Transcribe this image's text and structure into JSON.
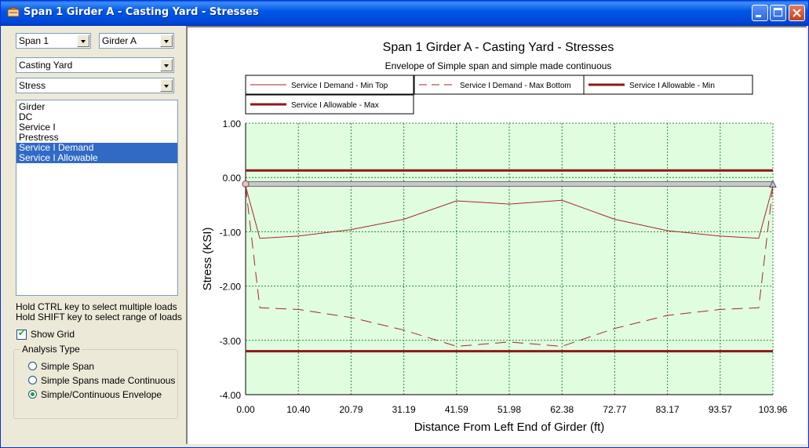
{
  "window": {
    "title": "Span 1 Girder A - Casting Yard - Stresses",
    "buttons": [
      "minimize",
      "maximize",
      "close"
    ]
  },
  "controls": {
    "span": "Span 1",
    "girder": "Girder A",
    "stage": "Casting Yard",
    "action": "Stress",
    "loads": [
      {
        "label": "Girder",
        "selected": false
      },
      {
        "label": "DC",
        "selected": false
      },
      {
        "label": "Service I",
        "selected": false
      },
      {
        "label": "Prestress",
        "selected": false
      },
      {
        "label": "Service I Demand",
        "selected": true
      },
      {
        "label": "Service I Allowable",
        "selected": true
      }
    ],
    "hint_ctrl": "Hold CTRL key to select multiple loads",
    "hint_shift": "Hold SHIFT key to select range of loads",
    "show_grid_label": "Show Grid",
    "show_grid": true,
    "analysis_type_label": "Analysis Type",
    "analysis_options": [
      "Simple Span",
      "Simple Spans made Continuous",
      "Simple/Continuous Envelope"
    ],
    "analysis_selected": 2
  },
  "chart_data": {
    "type": "line",
    "title": "Span 1 Girder A - Casting Yard - Stresses",
    "subtitle": "Envelope of Simple span and simple made continuous",
    "xlabel": "Distance From Left End of Girder (ft)",
    "ylabel": "Stress (KSI)",
    "xlim": [
      0,
      103.96
    ],
    "ylim": [
      -4.0,
      1.0
    ],
    "xticks": [
      "0.00",
      "10.40",
      "20.79",
      "31.19",
      "41.59",
      "51.98",
      "62.38",
      "72.77",
      "83.17",
      "93.57",
      "103.96"
    ],
    "yticks": [
      "1.00",
      "0.00",
      "-1.00",
      "-2.00",
      "-3.00",
      "-4.00"
    ],
    "grid": true,
    "plot_bg": "#e0fde0",
    "series": [
      {
        "name": "Service I Demand - Min Top",
        "style": "thin",
        "color": "#a52a2a",
        "x": [
          0,
          2.8,
          10.4,
          20.79,
          31.19,
          41.59,
          51.98,
          62.38,
          72.77,
          83.17,
          93.57,
          101.16,
          103.96
        ],
        "y": [
          -0.16,
          -1.12,
          -1.08,
          -0.96,
          -0.77,
          -0.43,
          -0.49,
          -0.42,
          -0.77,
          -0.98,
          -1.08,
          -1.12,
          -0.16
        ]
      },
      {
        "name": "Service I Demand - Max Bottom",
        "style": "dashed",
        "color": "#a52a2a",
        "x": [
          0,
          2.8,
          10.4,
          20.79,
          31.19,
          41.59,
          51.98,
          62.38,
          72.77,
          83.17,
          93.57,
          101.16,
          103.96
        ],
        "y": [
          -0.16,
          -2.4,
          -2.43,
          -2.58,
          -2.81,
          -3.11,
          -3.03,
          -3.11,
          -2.78,
          -2.54,
          -2.43,
          -2.4,
          -0.16
        ]
      },
      {
        "name": "Service I Allowable - Min",
        "style": "thick",
        "color": "#8b1a1a",
        "x": [
          0,
          103.96
        ],
        "y": [
          -3.2,
          -3.2
        ]
      },
      {
        "name": "Service I Allowable - Max",
        "style": "thick",
        "color": "#8b1a1a",
        "x": [
          0,
          103.96
        ],
        "y": [
          0.13,
          0.13
        ]
      }
    ],
    "girder_line_y": -0.12,
    "legend_position": "top"
  }
}
